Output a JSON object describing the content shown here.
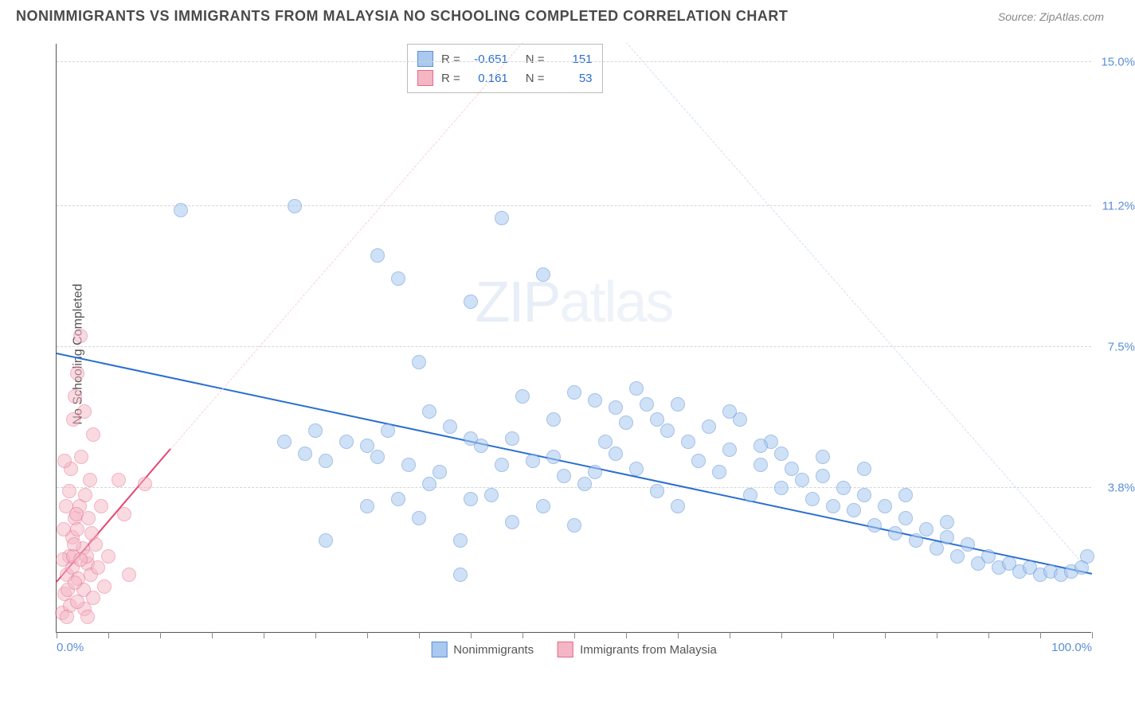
{
  "title": "NONIMMIGRANTS VS IMMIGRANTS FROM MALAYSIA NO SCHOOLING COMPLETED CORRELATION CHART",
  "source": "Source: ZipAtlas.com",
  "ylabel": "No Schooling Completed",
  "watermark_a": "ZIP",
  "watermark_b": "atlas",
  "chart": {
    "type": "scatter",
    "xlim": [
      0,
      100
    ],
    "ylim": [
      0,
      15.5
    ],
    "x_ticks_minor": [
      0,
      5,
      10,
      15,
      20,
      25,
      30,
      35,
      40,
      45,
      50,
      55,
      60,
      65,
      70,
      75,
      80,
      85,
      90,
      95,
      100
    ],
    "x_tick_labels": [
      {
        "x": 0,
        "label": "0.0%"
      },
      {
        "x": 100,
        "label": "100.0%"
      }
    ],
    "y_grid": [
      {
        "y": 3.8,
        "label": "3.8%"
      },
      {
        "y": 7.5,
        "label": "7.5%"
      },
      {
        "y": 11.2,
        "label": "11.2%"
      },
      {
        "y": 15.0,
        "label": "15.0%"
      }
    ],
    "background_color": "#ffffff",
    "grid_color": "#d5d5d5",
    "axis_color": "#555555",
    "tick_label_color": "#5b8fd6",
    "point_radius": 9,
    "series": [
      {
        "name": "Nonimmigrants",
        "fill": "#a9c9f0",
        "stroke": "#5b8fd6",
        "fill_opacity": 0.55,
        "trend": {
          "x1": 0,
          "y1": 7.3,
          "x2": 100,
          "y2": 1.5,
          "color": "#2b6fd0",
          "width": 2.5,
          "dash": "solid",
          "extend_x2": 55,
          "extend_y2": 15.5,
          "extend_dash": "4 4",
          "extend_color": "#d0def2"
        },
        "R": "-0.651",
        "N": "151",
        "points": [
          [
            12,
            11.1
          ],
          [
            23,
            11.2
          ],
          [
            43,
            10.9
          ],
          [
            31,
            9.9
          ],
          [
            33,
            9.3
          ],
          [
            40,
            8.7
          ],
          [
            47,
            9.4
          ],
          [
            35,
            7.1
          ],
          [
            22,
            5.0
          ],
          [
            24,
            4.7
          ],
          [
            25,
            5.3
          ],
          [
            26,
            4.5
          ],
          [
            30,
            3.3
          ],
          [
            28,
            5.0
          ],
          [
            31,
            4.6
          ],
          [
            32,
            5.3
          ],
          [
            33,
            3.5
          ],
          [
            34,
            4.4
          ],
          [
            35,
            3.0
          ],
          [
            36,
            5.8
          ],
          [
            37,
            4.2
          ],
          [
            38,
            5.4
          ],
          [
            39,
            2.4
          ],
          [
            40,
            3.5
          ],
          [
            41,
            4.9
          ],
          [
            42,
            3.6
          ],
          [
            43,
            4.4
          ],
          [
            44,
            5.1
          ],
          [
            45,
            6.2
          ],
          [
            46,
            4.5
          ],
          [
            47,
            3.3
          ],
          [
            48,
            5.6
          ],
          [
            49,
            4.1
          ],
          [
            50,
            6.3
          ],
          [
            51,
            3.9
          ],
          [
            52,
            6.1
          ],
          [
            53,
            5.0
          ],
          [
            54,
            4.7
          ],
          [
            55,
            5.5
          ],
          [
            56,
            4.3
          ],
          [
            57,
            6.0
          ],
          [
            58,
            3.7
          ],
          [
            59,
            5.3
          ],
          [
            60,
            6.0
          ],
          [
            61,
            5.0
          ],
          [
            62,
            4.5
          ],
          [
            63,
            5.4
          ],
          [
            64,
            4.2
          ],
          [
            65,
            4.8
          ],
          [
            66,
            5.6
          ],
          [
            67,
            3.6
          ],
          [
            68,
            4.4
          ],
          [
            69,
            5.0
          ],
          [
            70,
            3.8
          ],
          [
            71,
            4.3
          ],
          [
            72,
            4.0
          ],
          [
            73,
            3.5
          ],
          [
            74,
            4.1
          ],
          [
            75,
            3.3
          ],
          [
            76,
            3.8
          ],
          [
            77,
            3.2
          ],
          [
            78,
            3.6
          ],
          [
            79,
            2.8
          ],
          [
            80,
            3.3
          ],
          [
            81,
            2.6
          ],
          [
            82,
            3.0
          ],
          [
            83,
            2.4
          ],
          [
            84,
            2.7
          ],
          [
            85,
            2.2
          ],
          [
            86,
            2.5
          ],
          [
            87,
            2.0
          ],
          [
            88,
            2.3
          ],
          [
            89,
            1.8
          ],
          [
            90,
            2.0
          ],
          [
            91,
            1.7
          ],
          [
            92,
            1.8
          ],
          [
            93,
            1.6
          ],
          [
            94,
            1.7
          ],
          [
            95,
            1.5
          ],
          [
            96,
            1.6
          ],
          [
            97,
            1.5
          ],
          [
            98,
            1.6
          ],
          [
            99,
            1.7
          ],
          [
            99.5,
            2.0
          ],
          [
            44,
            2.9
          ],
          [
            39,
            1.5
          ],
          [
            50,
            2.8
          ],
          [
            56,
            6.4
          ],
          [
            60,
            3.3
          ],
          [
            65,
            5.8
          ],
          [
            68,
            4.9
          ],
          [
            70,
            4.7
          ],
          [
            74,
            4.6
          ],
          [
            78,
            4.3
          ],
          [
            82,
            3.6
          ],
          [
            86,
            2.9
          ],
          [
            48,
            4.6
          ],
          [
            52,
            4.2
          ],
          [
            54,
            5.9
          ],
          [
            58,
            5.6
          ],
          [
            30,
            4.9
          ],
          [
            26,
            2.4
          ],
          [
            36,
            3.9
          ],
          [
            40,
            5.1
          ]
        ]
      },
      {
        "name": "Immigrants from Malaysia",
        "fill": "#f4b6c5",
        "stroke": "#e6698a",
        "fill_opacity": 0.5,
        "trend": {
          "x1": 0,
          "y1": 1.3,
          "x2": 11,
          "y2": 4.8,
          "color": "#e6456f",
          "width": 2.5,
          "dash": "solid",
          "extend_x2": 45,
          "extend_y2": 15.5,
          "extend_dash": "3 5",
          "extend_color": "#f5d0d8"
        },
        "R": "0.161",
        "N": "53",
        "points": [
          [
            0.5,
            0.5
          ],
          [
            0.8,
            1.0
          ],
          [
            1.0,
            1.5
          ],
          [
            1.2,
            2.0
          ],
          [
            1.5,
            2.5
          ],
          [
            1.8,
            3.0
          ],
          [
            2.0,
            2.7
          ],
          [
            2.2,
            3.3
          ],
          [
            2.5,
            2.2
          ],
          [
            2.8,
            3.6
          ],
          [
            3.0,
            1.8
          ],
          [
            3.2,
            4.0
          ],
          [
            3.5,
            5.2
          ],
          [
            1.4,
            4.3
          ],
          [
            1.6,
            5.6
          ],
          [
            1.8,
            6.2
          ],
          [
            2.0,
            6.8
          ],
          [
            2.3,
            7.8
          ],
          [
            0.7,
            2.7
          ],
          [
            0.9,
            3.3
          ],
          [
            1.1,
            1.1
          ],
          [
            1.3,
            0.7
          ],
          [
            1.5,
            1.7
          ],
          [
            1.7,
            2.3
          ],
          [
            1.9,
            3.1
          ],
          [
            2.1,
            1.4
          ],
          [
            2.4,
            4.6
          ],
          [
            2.6,
            1.1
          ],
          [
            2.9,
            2.0
          ],
          [
            3.1,
            3.0
          ],
          [
            3.3,
            1.5
          ],
          [
            3.5,
            0.9
          ],
          [
            3.8,
            2.3
          ],
          [
            4.0,
            1.7
          ],
          [
            4.3,
            3.3
          ],
          [
            4.6,
            1.2
          ],
          [
            5.0,
            2.0
          ],
          [
            6.0,
            4.0
          ],
          [
            6.5,
            3.1
          ],
          [
            7.0,
            1.5
          ],
          [
            8.5,
            3.9
          ],
          [
            1.0,
            0.4
          ],
          [
            1.2,
            3.7
          ],
          [
            0.6,
            1.9
          ],
          [
            0.8,
            4.5
          ],
          [
            2.7,
            0.6
          ],
          [
            3.0,
            0.4
          ],
          [
            3.4,
            2.6
          ],
          [
            1.6,
            2.0
          ],
          [
            1.8,
            1.3
          ],
          [
            2.0,
            0.8
          ],
          [
            2.3,
            1.9
          ],
          [
            2.7,
            5.8
          ]
        ]
      }
    ]
  },
  "legend_bottom": [
    {
      "swatch_fill": "#a9c9f0",
      "swatch_stroke": "#5b8fd6",
      "label": "Nonimmigrants"
    },
    {
      "swatch_fill": "#f4b6c5",
      "swatch_stroke": "#e6698a",
      "label": "Immigrants from Malaysia"
    }
  ],
  "stats_box": {
    "rows": [
      {
        "swatch_fill": "#a9c9f0",
        "swatch_stroke": "#5b8fd6",
        "R_label": "R =",
        "R": "-0.651",
        "N_label": "N =",
        "N": "151"
      },
      {
        "swatch_fill": "#f4b6c5",
        "swatch_stroke": "#e6698a",
        "R_label": "R =",
        "R": "0.161",
        "N_label": "N =",
        "N": "53"
      }
    ]
  }
}
